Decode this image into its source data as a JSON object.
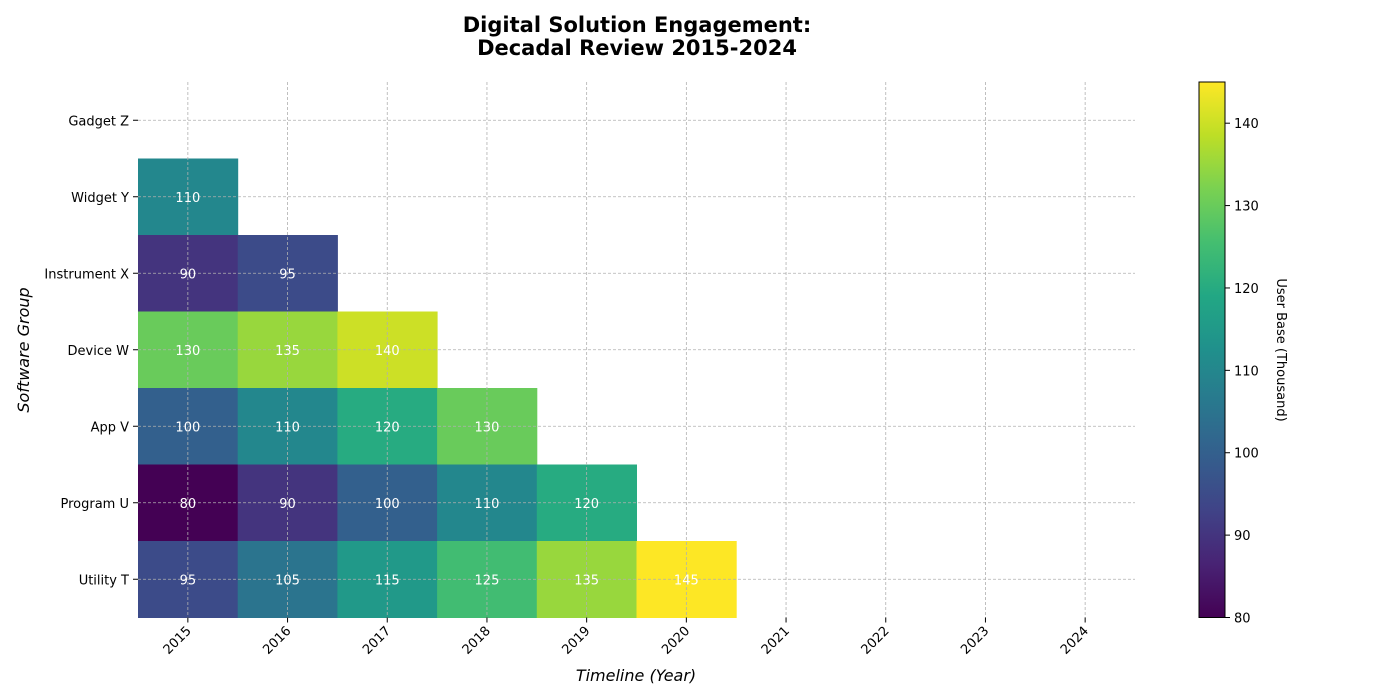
{
  "chart_data": {
    "type": "heatmap",
    "title_lines": [
      "Digital Solution Engagement:",
      "Decadal Review 2015-2024"
    ],
    "xlabel": "Timeline (Year)",
    "ylabel": "Software Group",
    "x": [
      "2015",
      "2016",
      "2017",
      "2018",
      "2019",
      "2020",
      "2021",
      "2022",
      "2023",
      "2024"
    ],
    "y": [
      "Gadget Z",
      "Widget Y",
      "Instrument X",
      "Device W",
      "App V",
      "Program U",
      "Utility T"
    ],
    "values": [
      [
        null,
        null,
        null,
        null,
        null,
        null,
        null,
        null,
        null,
        null
      ],
      [
        110,
        null,
        null,
        null,
        null,
        null,
        null,
        null,
        null,
        null
      ],
      [
        90,
        95,
        null,
        null,
        null,
        null,
        null,
        null,
        null,
        null
      ],
      [
        130,
        135,
        140,
        null,
        null,
        null,
        null,
        null,
        null,
        null
      ],
      [
        100,
        110,
        120,
        130,
        null,
        null,
        null,
        null,
        null,
        null
      ],
      [
        80,
        90,
        100,
        110,
        120,
        null,
        null,
        null,
        null,
        null
      ],
      [
        95,
        105,
        115,
        125,
        135,
        145,
        null,
        null,
        null,
        null
      ]
    ],
    "colorbar": {
      "label": "User Base (Thousand)",
      "min": 80,
      "max": 145,
      "ticks": [
        80,
        90,
        100,
        110,
        120,
        130,
        140
      ],
      "colormap": "viridis"
    },
    "grid": true,
    "cell_labels": true
  }
}
